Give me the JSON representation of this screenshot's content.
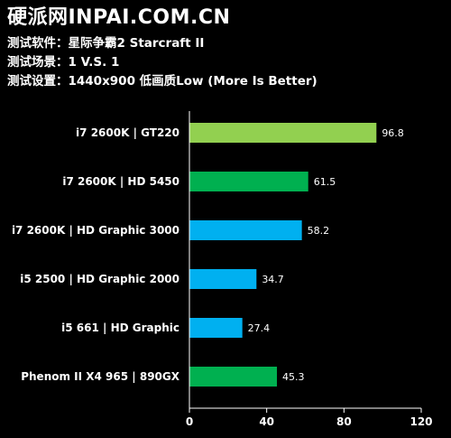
{
  "header": {
    "site_title": "硬派网INPAI.COM.CN",
    "lines": [
      "测试软件：星际争霸2 Starcraft II",
      "测试场景：1 V.S. 1",
      "测试设置：1440x900 低画质Low (More Is Better)"
    ]
  },
  "colors": {
    "background": "#000000",
    "lime": "#92D050",
    "green": "#00B050",
    "blue": "#00B0F0",
    "axis": "#ffffff"
  },
  "chart_data": {
    "type": "bar",
    "orientation": "horizontal",
    "title": "",
    "xlabel": "",
    "ylabel": "",
    "categories": [
      "i7 2600K | GT220",
      "i7 2600K | HD 5450",
      "i7 2600K | HD Graphic 3000",
      "i5 2500 | HD Graphic 2000",
      "i5 661 | HD Graphic",
      "Phenom II X4 965 | 890GX"
    ],
    "values": [
      96.8,
      61.5,
      58.2,
      34.7,
      27.4,
      45.3
    ],
    "bar_colors": [
      "lime",
      "green",
      "blue",
      "blue",
      "blue",
      "green"
    ],
    "xlim": [
      0,
      120
    ],
    "xticks": [
      0,
      40,
      80,
      120
    ],
    "grid": false,
    "legend": "none"
  }
}
